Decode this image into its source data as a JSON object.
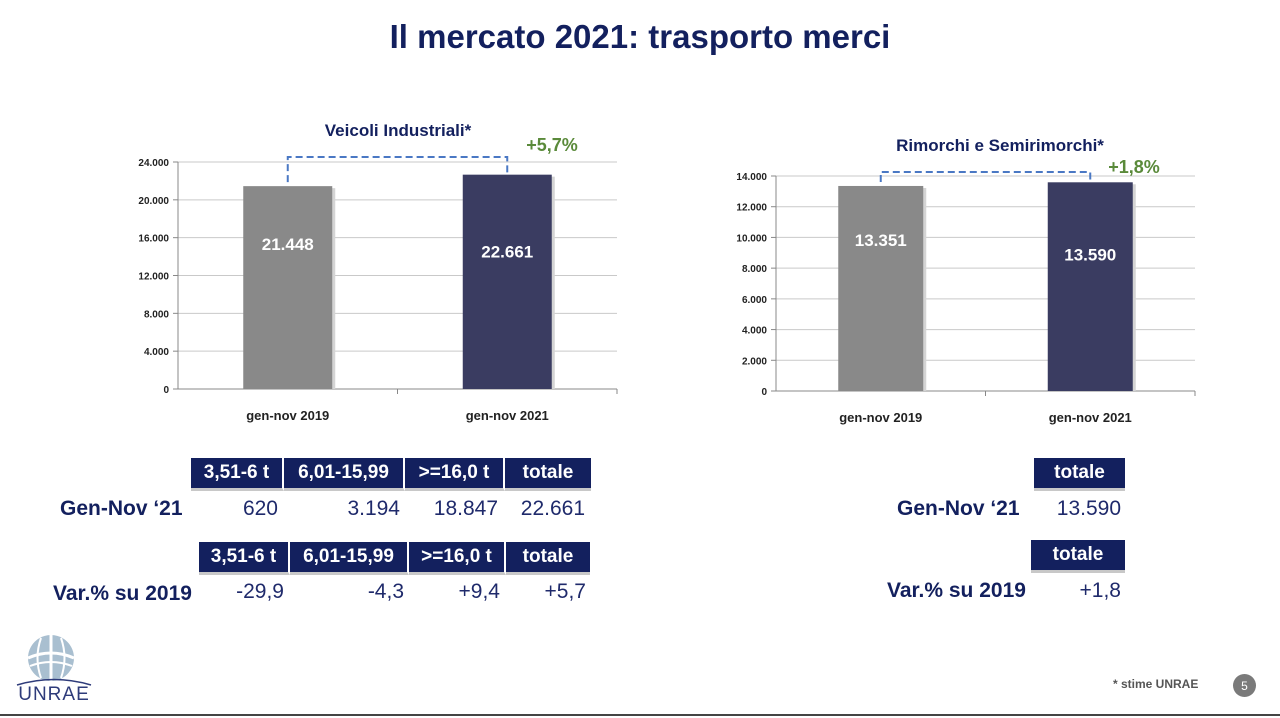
{
  "title": "Il mercato 2021: trasporto merci",
  "chart_data": [
    {
      "type": "bar",
      "title": "Veicoli Industriali*",
      "categories": [
        "gen-nov 2019",
        "gen-nov 2021"
      ],
      "values": [
        21448,
        22661
      ],
      "value_labels": [
        "21.448",
        "22.661"
      ],
      "ylim": [
        0,
        24000
      ],
      "yticks": [
        0,
        4000,
        8000,
        12000,
        16000,
        20000,
        24000
      ],
      "ytick_labels": [
        "0",
        "4.000",
        "8.000",
        "12.000",
        "16.000",
        "20.000",
        "24.000"
      ],
      "grid": true,
      "colors": [
        "#898989",
        "#3a3c61"
      ],
      "annotation": "+5,7%"
    },
    {
      "type": "bar",
      "title": "Rimorchi e Semirimorchi*",
      "categories": [
        "gen-nov 2019",
        "gen-nov 2021"
      ],
      "values": [
        13351,
        13590
      ],
      "value_labels": [
        "13.351",
        "13.590"
      ],
      "ylim": [
        0,
        14000
      ],
      "yticks": [
        0,
        2000,
        4000,
        6000,
        8000,
        10000,
        12000,
        14000
      ],
      "ytick_labels": [
        "0",
        "2.000",
        "4.000",
        "6.000",
        "8.000",
        "10.000",
        "12.000",
        "14.000"
      ],
      "grid": true,
      "colors": [
        "#898989",
        "#3a3c61"
      ],
      "annotation": "+1,8%"
    }
  ],
  "left_table": {
    "headers1": [
      "3,51-6 t",
      "6,01-15,99",
      ">=16,0 t",
      "totale"
    ],
    "row1_label": "Gen-Nov ‘21",
    "row1_values": [
      "620",
      "3.194",
      "18.847",
      "22.661"
    ],
    "headers2": [
      "3,51-6 t",
      "6,01-15,99",
      ">=16,0 t",
      "totale"
    ],
    "row2_label": "Var.% su 2019",
    "row2_values": [
      "-29,9",
      "-4,3",
      "+9,4",
      "+5,7"
    ]
  },
  "right_table": {
    "header1": "totale",
    "row1_label": "Gen-Nov ‘21",
    "row1_value": "13.590",
    "header2": "totale",
    "row2_label": "Var.% su 2019",
    "row2_value": "+1,8"
  },
  "logo_text": "UNRAE",
  "footnote": "* stime UNRAE",
  "page_number": "5",
  "colors": {
    "navy": "#13205e",
    "green_annotation": "#5a8a3a"
  }
}
